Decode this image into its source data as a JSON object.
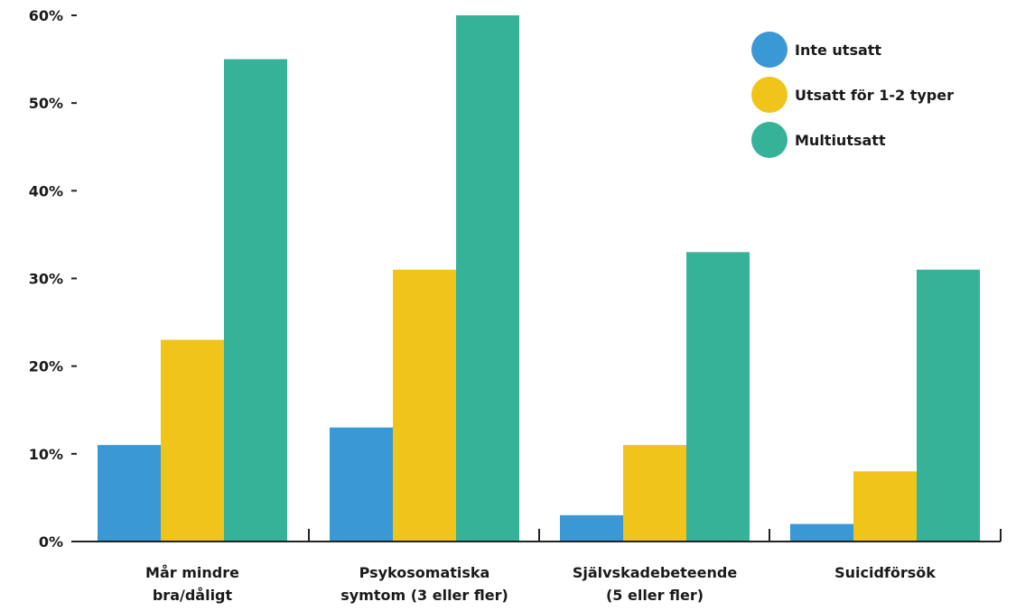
{
  "chart_data": {
    "type": "bar",
    "categories": [
      [
        "Mår mindre",
        "bra/dåligt"
      ],
      [
        "Psykosomatiska",
        "symtom (3 eller fler)"
      ],
      [
        "Självskadebeteende",
        "(5 eller fler)"
      ],
      [
        "Suicidförsök"
      ]
    ],
    "series": [
      {
        "name": "Inte utsatt",
        "color": "#3a98d4",
        "values": [
          11,
          13,
          3,
          2
        ]
      },
      {
        "name": "Utsatt för 1-2 typer",
        "color": "#f0c419",
        "values": [
          23,
          31,
          11,
          8
        ]
      },
      {
        "name": "Multiutsatt",
        "color": "#35b298",
        "values": [
          55,
          60,
          33,
          31
        ]
      }
    ],
    "ylim": [
      0,
      60
    ],
    "yticks": [
      0,
      10,
      20,
      30,
      40,
      50,
      60
    ],
    "ytick_labels": [
      "0%",
      "10%",
      "20%",
      "30%",
      "40%",
      "50%",
      "60%"
    ],
    "grid": false,
    "legend_position": "top-right",
    "title": "",
    "xlabel": "",
    "ylabel": ""
  }
}
